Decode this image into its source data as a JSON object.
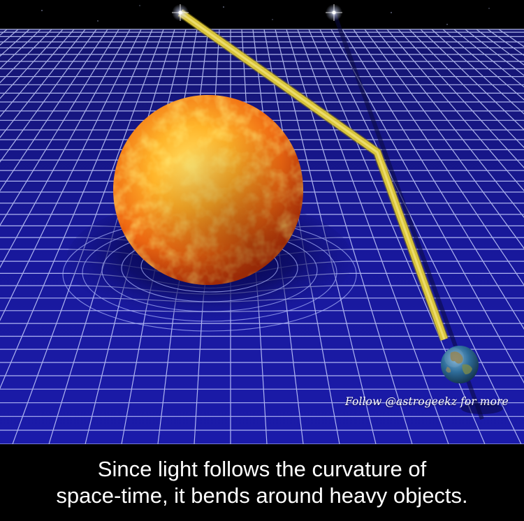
{
  "watermark": "Follow @astrogeekz for more",
  "caption": {
    "line1": "Since light follows the curvature of",
    "line2": "space-time, it bends around heavy objects."
  },
  "colors": {
    "grid_background": "#16168c",
    "grid_line": "#cfd6ff",
    "sun_core": "#ffd24a",
    "sun_edge": "#d9480f",
    "light_beam": "#d8c43a",
    "space": "#000000",
    "caption_text": "#ffffff"
  }
}
